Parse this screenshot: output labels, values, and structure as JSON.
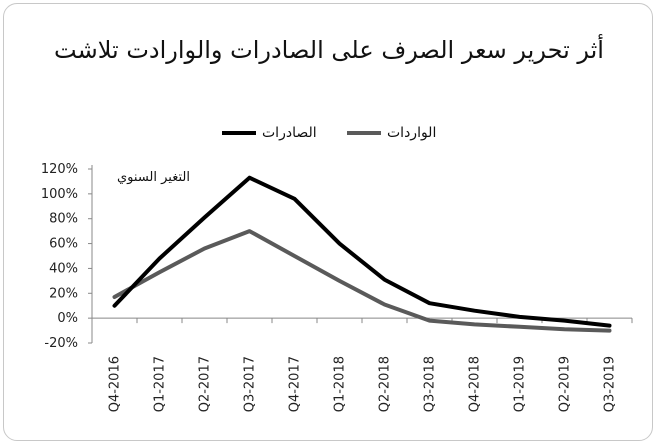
{
  "chart_data": {
    "type": "line",
    "title": "أثر تحرير سعر الصرف على الصادرات والوارادت تلاشت",
    "annotation": "التغير السنوي",
    "categories": [
      "Q4-2016",
      "Q1-2017",
      "Q2-2017",
      "Q3-2017",
      "Q4-2017",
      "Q1-2018",
      "Q2-2018",
      "Q3-2018",
      "Q4-2018",
      "Q1-2019",
      "Q2-2019",
      "Q3-2019"
    ],
    "y_ticks": [
      "120%",
      "100%",
      "80%",
      "60%",
      "40%",
      "20%",
      "0%",
      "-20%"
    ],
    "ylim": [
      -20,
      120
    ],
    "grid": false,
    "legend_position": "top",
    "series": [
      {
        "name": "الصادرات",
        "color": "#000000",
        "values": [
          10,
          48,
          81,
          113,
          96,
          60,
          31,
          12,
          6,
          1,
          -2,
          -6
        ]
      },
      {
        "name": "الواردات",
        "color": "#5a5a5a",
        "values": [
          17,
          37,
          56,
          70,
          50,
          30,
          11,
          -2,
          -5,
          -7,
          -9,
          -10
        ]
      }
    ]
  }
}
